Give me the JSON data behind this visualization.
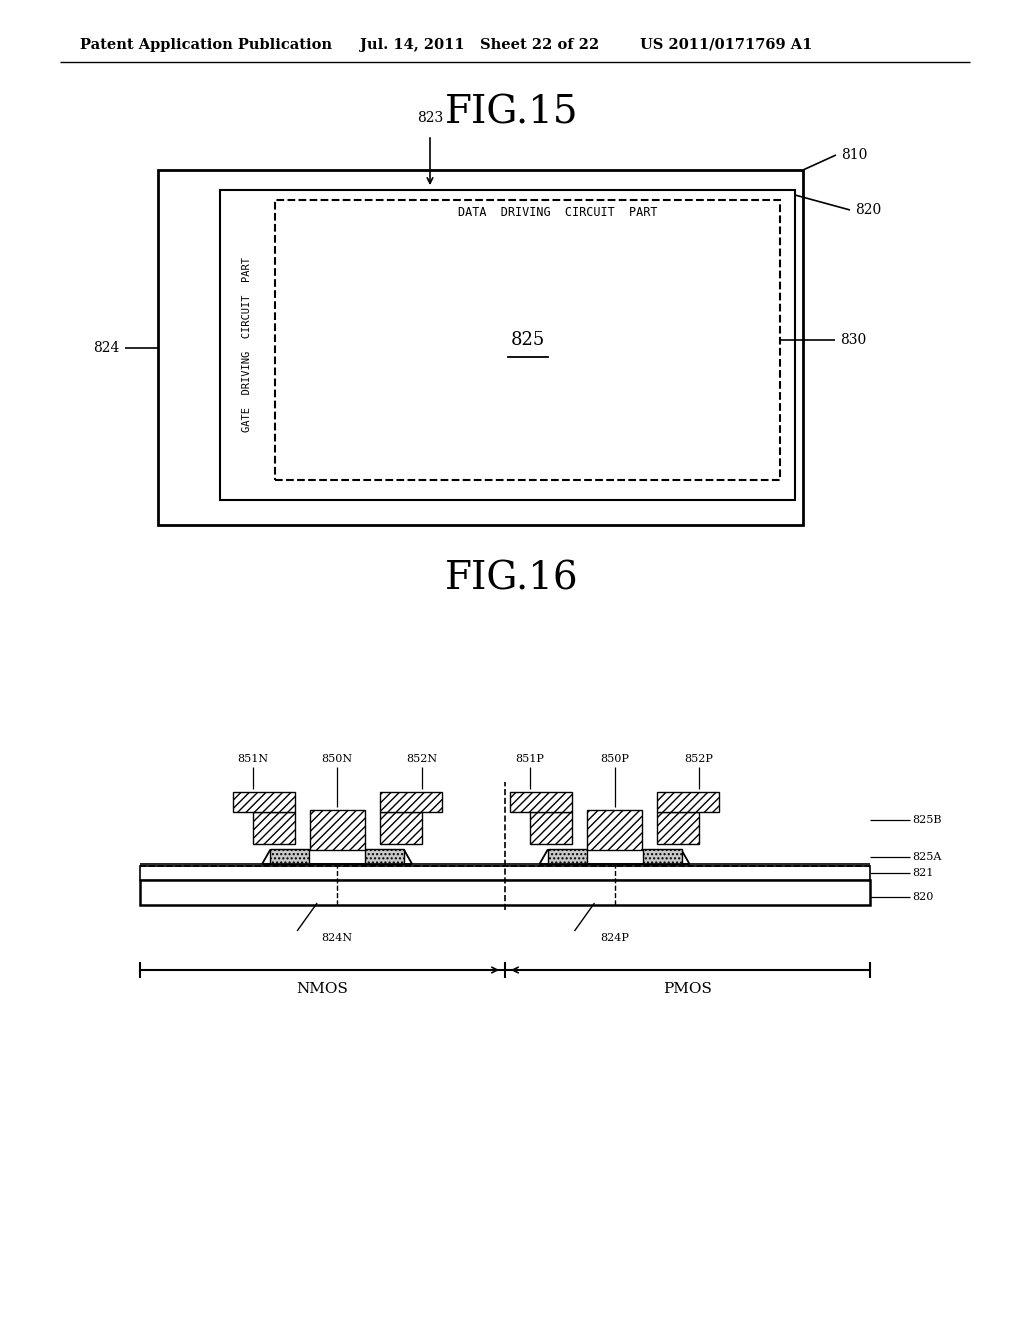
{
  "bg_color": "#ffffff",
  "header_text": "Patent Application Publication",
  "header_date": "Jul. 14, 2011   Sheet 22 of 22",
  "header_patent": "US 2011/0171769 A1",
  "fig15_title": "FIG.15",
  "fig16_title": "FIG.16",
  "fig15": {
    "label_data_driving": "DATA  DRIVING  CIRCUIT  PART",
    "label_gate_driving": "GATE  DRIVING  CIRCUIT  PART",
    "label_825": "825",
    "label_810": "810",
    "label_820": "820",
    "label_823": "823",
    "label_824": "824",
    "label_830": "830"
  },
  "fig16": {
    "label_851N": "851N",
    "label_850N": "850N",
    "label_852N": "852N",
    "label_851P": "851P",
    "label_850P": "850P",
    "label_852P": "852P",
    "label_825B": "825B",
    "label_825A": "825A",
    "label_821": "821",
    "label_820": "820",
    "label_824N": "824N",
    "label_824P": "824P",
    "label_NMOS": "NMOS",
    "label_PMOS": "PMOS"
  }
}
